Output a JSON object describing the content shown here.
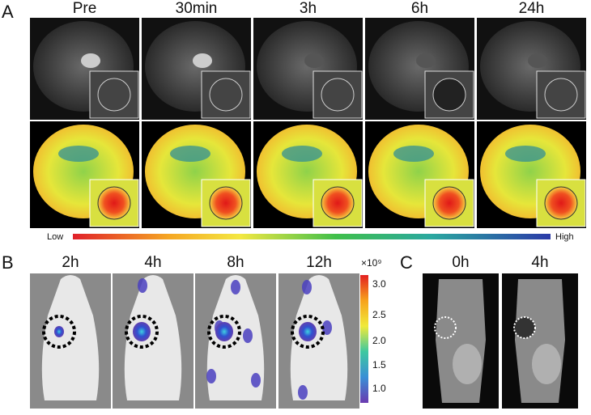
{
  "panel_a": {
    "label": "A",
    "timepoints": [
      "Pre",
      "30min",
      "3h",
      "6h",
      "24h"
    ],
    "scale": {
      "low": "Low",
      "high": "High"
    }
  },
  "panel_b": {
    "label": "B",
    "timepoints": [
      "2h",
      "4h",
      "8h",
      "12h"
    ],
    "colorbar": {
      "unit": "×10⁹",
      "ticks": [
        "3.0",
        "2.5",
        "2.0",
        "1.5",
        "1.0"
      ]
    }
  },
  "panel_c": {
    "label": "C",
    "timepoints": [
      "0h",
      "4h"
    ]
  }
}
